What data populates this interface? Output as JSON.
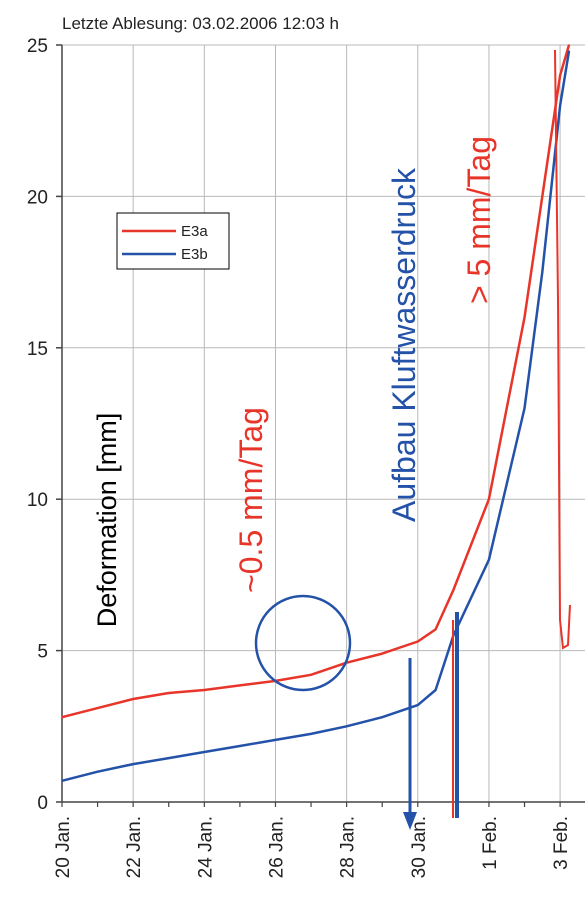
{
  "chart_data": {
    "type": "line",
    "title": "Letzte Ablesung: 03.02.2006 12:03 h",
    "ylabel": "Deformation [mm]",
    "xlabel": "",
    "ylim": [
      0,
      25
    ],
    "y_ticks": [
      "0",
      "5",
      "10",
      "15",
      "20",
      "25"
    ],
    "x_tick_labels": [
      "20 Jan.",
      "22 Jan.",
      "24 Jan.",
      "26 Jan.",
      "28 Jan.",
      "30 Jan.",
      "1 Feb.",
      "3 Feb."
    ],
    "grid": true,
    "legend_position": "upper-left",
    "series": [
      {
        "name": "E3a",
        "color": "#e8352a",
        "x": [
          "2006-01-20",
          "2006-01-21",
          "2006-01-22",
          "2006-01-23",
          "2006-01-24",
          "2006-01-25",
          "2006-01-26",
          "2006-01-27",
          "2006-01-28",
          "2006-01-29",
          "2006-01-30",
          "2006-01-30 12:00",
          "2006-01-31",
          "2006-02-01",
          "2006-02-01 12:00",
          "2006-02-02",
          "2006-02-02 12:00",
          "2006-02-03",
          "2006-02-03 06:00"
        ],
        "values": [
          2.8,
          3.1,
          3.4,
          3.6,
          3.7,
          3.85,
          4.0,
          4.2,
          4.6,
          4.9,
          5.3,
          5.7,
          7.0,
          10.0,
          13.0,
          16.0,
          20.0,
          24.0,
          25.0
        ]
      },
      {
        "name": "E3b",
        "color": "#2452a8",
        "x": [
          "2006-01-20",
          "2006-01-21",
          "2006-01-22",
          "2006-01-23",
          "2006-01-24",
          "2006-01-25",
          "2006-01-26",
          "2006-01-27",
          "2006-01-28",
          "2006-01-29",
          "2006-01-30",
          "2006-01-30 12:00",
          "2006-01-31",
          "2006-02-01",
          "2006-02-01 12:00",
          "2006-02-02",
          "2006-02-02 12:00",
          "2006-02-03",
          "2006-02-03 06:00"
        ],
        "values": [
          0.7,
          1.0,
          1.25,
          1.45,
          1.65,
          1.85,
          2.05,
          2.25,
          2.5,
          2.8,
          3.2,
          3.7,
          5.5,
          8.0,
          10.5,
          13.0,
          17.5,
          23.0,
          24.8
        ]
      }
    ],
    "annotations": [
      {
        "text": "~0.5 mm/Tag",
        "color": "#e8352a"
      },
      {
        "text": "Aufbau Kluftwasserdruck",
        "color": "#2452a8"
      },
      {
        "text": "> 5 mm/Tag",
        "color": "#e8352a"
      }
    ]
  }
}
